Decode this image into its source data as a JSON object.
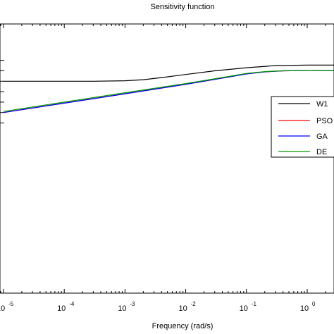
{
  "chart_data": {
    "type": "line",
    "title": "Sensitivity function",
    "xlabel": "Frequency (rad/s)",
    "ylabel": "",
    "xscale": "log",
    "xlim": [
      1e-05,
      10
    ],
    "x_ticks": [
      {
        "base": "10",
        "exp": "-5",
        "value": 1e-05
      },
      {
        "base": "10",
        "exp": "-4",
        "value": 0.0001
      },
      {
        "base": "10",
        "exp": "-3",
        "value": 0.001
      },
      {
        "base": "10",
        "exp": "-2",
        "value": 0.01
      },
      {
        "base": "10",
        "exp": "-1",
        "value": 0.1
      },
      {
        "base": "10",
        "exp": "0",
        "value": 1
      }
    ],
    "ylim": [
      -100,
      20
    ],
    "grid": false,
    "legend_position": "right",
    "series": [
      {
        "name": "W1",
        "color": "#000000",
        "x": [
          1e-05,
          0.0001,
          0.0003,
          0.001,
          0.002,
          0.004,
          0.01,
          0.03,
          0.1,
          0.3,
          1,
          10
        ],
        "y": [
          -20,
          -20,
          -20,
          -19,
          -17,
          -13,
          -7,
          0,
          6,
          10,
          11,
          11
        ]
      },
      {
        "name": "PSO",
        "color": "#ff0000",
        "x": [
          1e-05,
          0.0001,
          0.001,
          0.01,
          0.05,
          0.1,
          0.2,
          0.4,
          1,
          3,
          10
        ],
        "y": [
          -80,
          -62,
          -44,
          -26,
          -12,
          -6,
          -2,
          0,
          0.5,
          0.3,
          -0.5
        ]
      },
      {
        "name": "GA",
        "color": "#0000ff",
        "x": [
          1e-05,
          0.0001,
          0.001,
          0.01,
          0.05,
          0.1,
          0.2,
          0.4,
          1,
          3,
          10
        ],
        "y": [
          -80,
          -62,
          -44,
          -26,
          -12,
          -6,
          -2,
          0,
          0.5,
          0.3,
          -0.5
        ]
      },
      {
        "name": "DE",
        "color": "#009900",
        "x": [
          1e-05,
          0.0001,
          0.001,
          0.01,
          0.05,
          0.1,
          0.2,
          0.4,
          1,
          3,
          10
        ],
        "y": [
          -78,
          -60,
          -42,
          -24.5,
          -11,
          -5,
          -1.5,
          0.2,
          0.5,
          0.3,
          -0.5
        ]
      }
    ]
  }
}
